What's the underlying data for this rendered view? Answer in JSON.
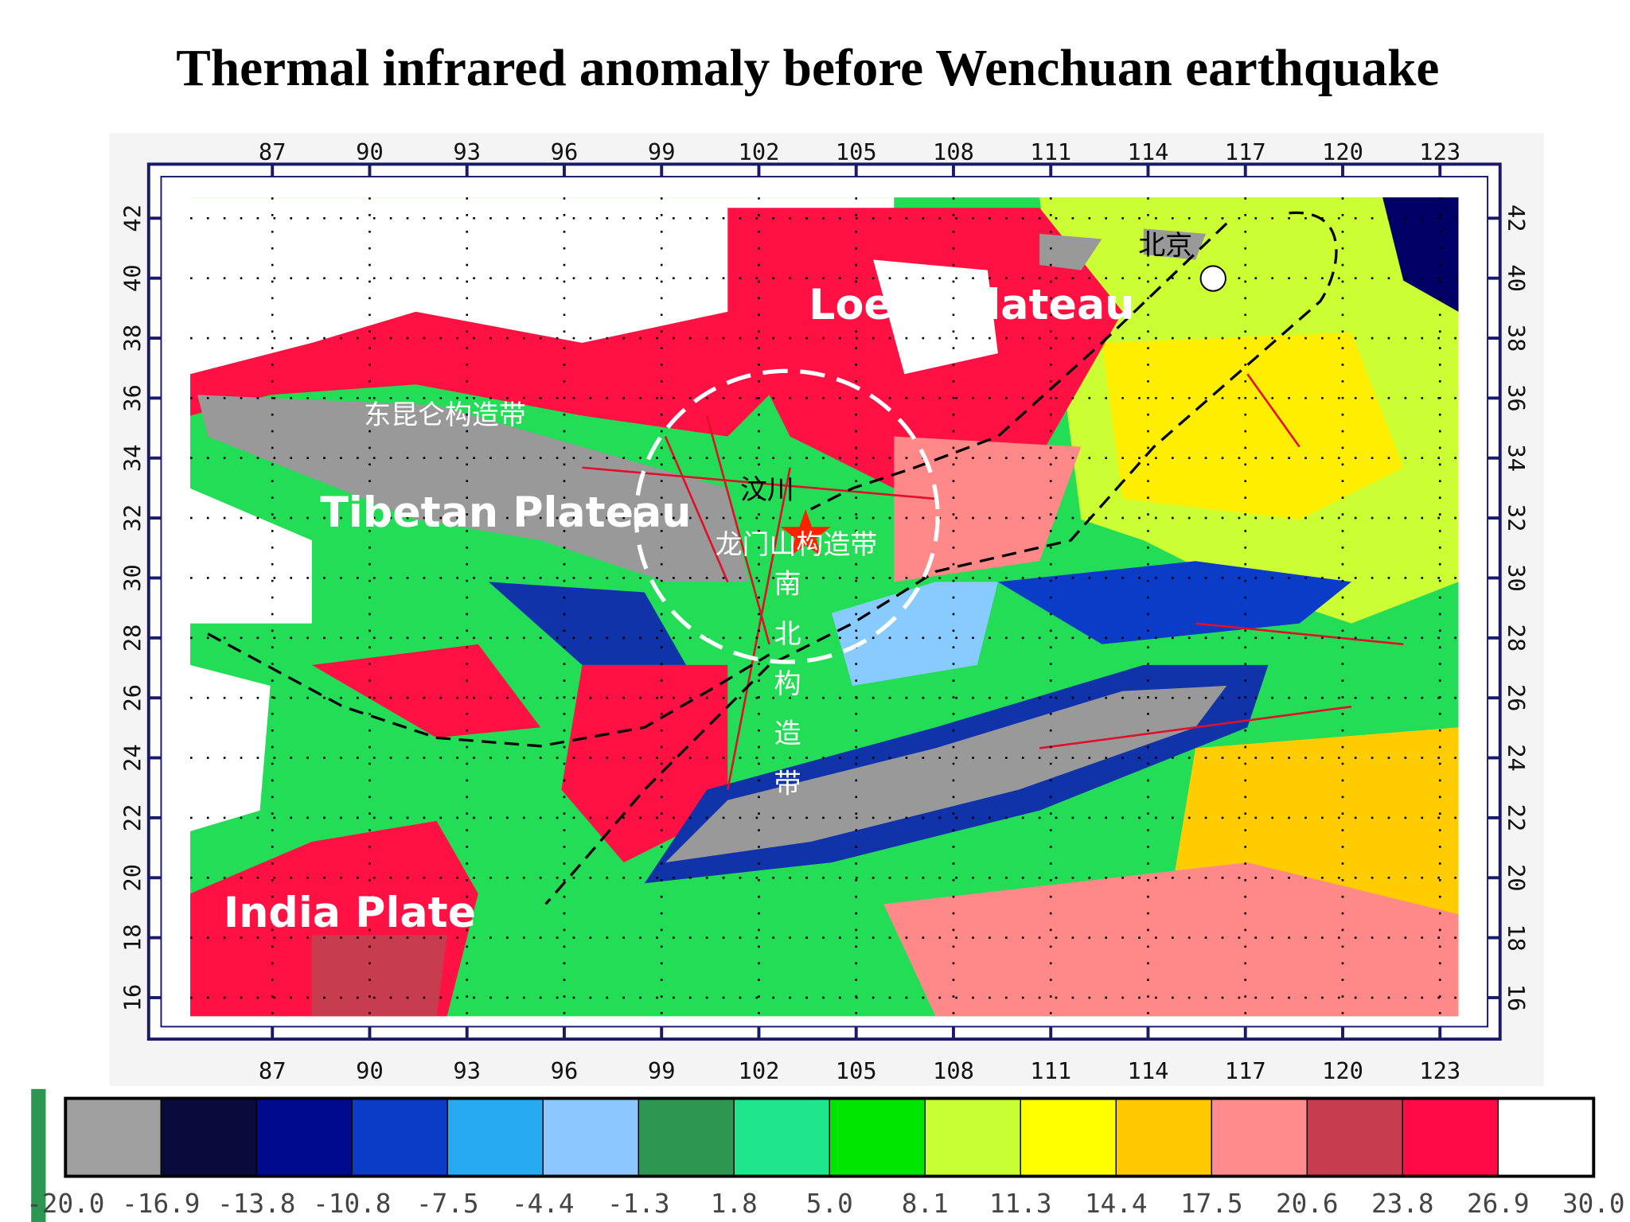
{
  "title": "Thermal infrared anomaly before Wenchuan earthquake",
  "map": {
    "lon_ticks": [
      87,
      90,
      93,
      96,
      99,
      102,
      105,
      108,
      111,
      114,
      117,
      120,
      123
    ],
    "lat_ticks": [
      42,
      40,
      38,
      36,
      34,
      32,
      30,
      28,
      26,
      24,
      22,
      20,
      18,
      16
    ],
    "labels": {
      "loess": "Loess Plateau",
      "tibet": "Tibetan Plateau",
      "india": "India Plate",
      "kunlun": "东昆仑构造带",
      "wenchuan": "汶川",
      "longmen": "龙门山构造带",
      "nanbei": "南北构造带",
      "beijing": "北京"
    }
  },
  "colorbar": {
    "colors": [
      "#a0a0a0",
      "#0a0a3c",
      "#000a8c",
      "#0a3cc8",
      "#28aaf0",
      "#8cc8ff",
      "#2d9650",
      "#1ee68c",
      "#00e600",
      "#c8ff32",
      "#ffff00",
      "#ffc800",
      "#ff8c8c",
      "#c83c50",
      "#ff0a46",
      "#ffffff"
    ],
    "labels": [
      "-20.0",
      "-16.9",
      "-13.8",
      "-10.8",
      "-7.5",
      "-4.4",
      "-1.3",
      "1.8",
      "5.0",
      "8.1",
      "11.3",
      "14.4",
      "17.5",
      "20.6",
      "23.8",
      "26.9",
      "30.0"
    ]
  }
}
